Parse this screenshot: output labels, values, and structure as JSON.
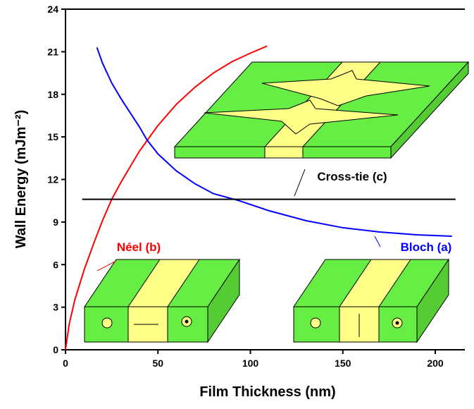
{
  "chart_data": {
    "type": "line",
    "xlabel": "Film Thickness (nm)",
    "ylabel": "Wall Energy (mJm⁻²)",
    "xlim": [
      0,
      216
    ],
    "xticks": [
      0,
      50,
      100,
      150,
      200
    ],
    "ylim": [
      0,
      24
    ],
    "yticks": [
      0,
      3,
      6,
      9,
      12,
      15,
      18,
      21,
      24
    ],
    "series": [
      {
        "name": "Néel (b)",
        "color": "#ff0000",
        "x": [
          0,
          2,
          5,
          10,
          15,
          20,
          25,
          30,
          40,
          50,
          60,
          70,
          80,
          90,
          100,
          109
        ],
        "values": [
          0,
          1.8,
          3.5,
          5.6,
          7.4,
          9.1,
          10.6,
          11.8,
          14.0,
          15.8,
          17.3,
          18.5,
          19.5,
          20.3,
          20.9,
          21.4
        ]
      },
      {
        "name": "Bloch (a)",
        "color": "#0000ff",
        "x": [
          17,
          20,
          25,
          30,
          40,
          44,
          50,
          60,
          70,
          80,
          94,
          110,
          130,
          150,
          170,
          190,
          209
        ],
        "values": [
          21.3,
          20.2,
          18.8,
          17.7,
          15.7,
          14.8,
          13.8,
          12.6,
          11.7,
          11.0,
          10.5,
          9.8,
          9.1,
          8.6,
          8.3,
          8.1,
          8.0
        ]
      },
      {
        "name": "Cross-tie (c)",
        "color": "#000000",
        "x": [
          9,
          211
        ],
        "values": [
          10.6,
          10.6
        ]
      }
    ]
  }
}
